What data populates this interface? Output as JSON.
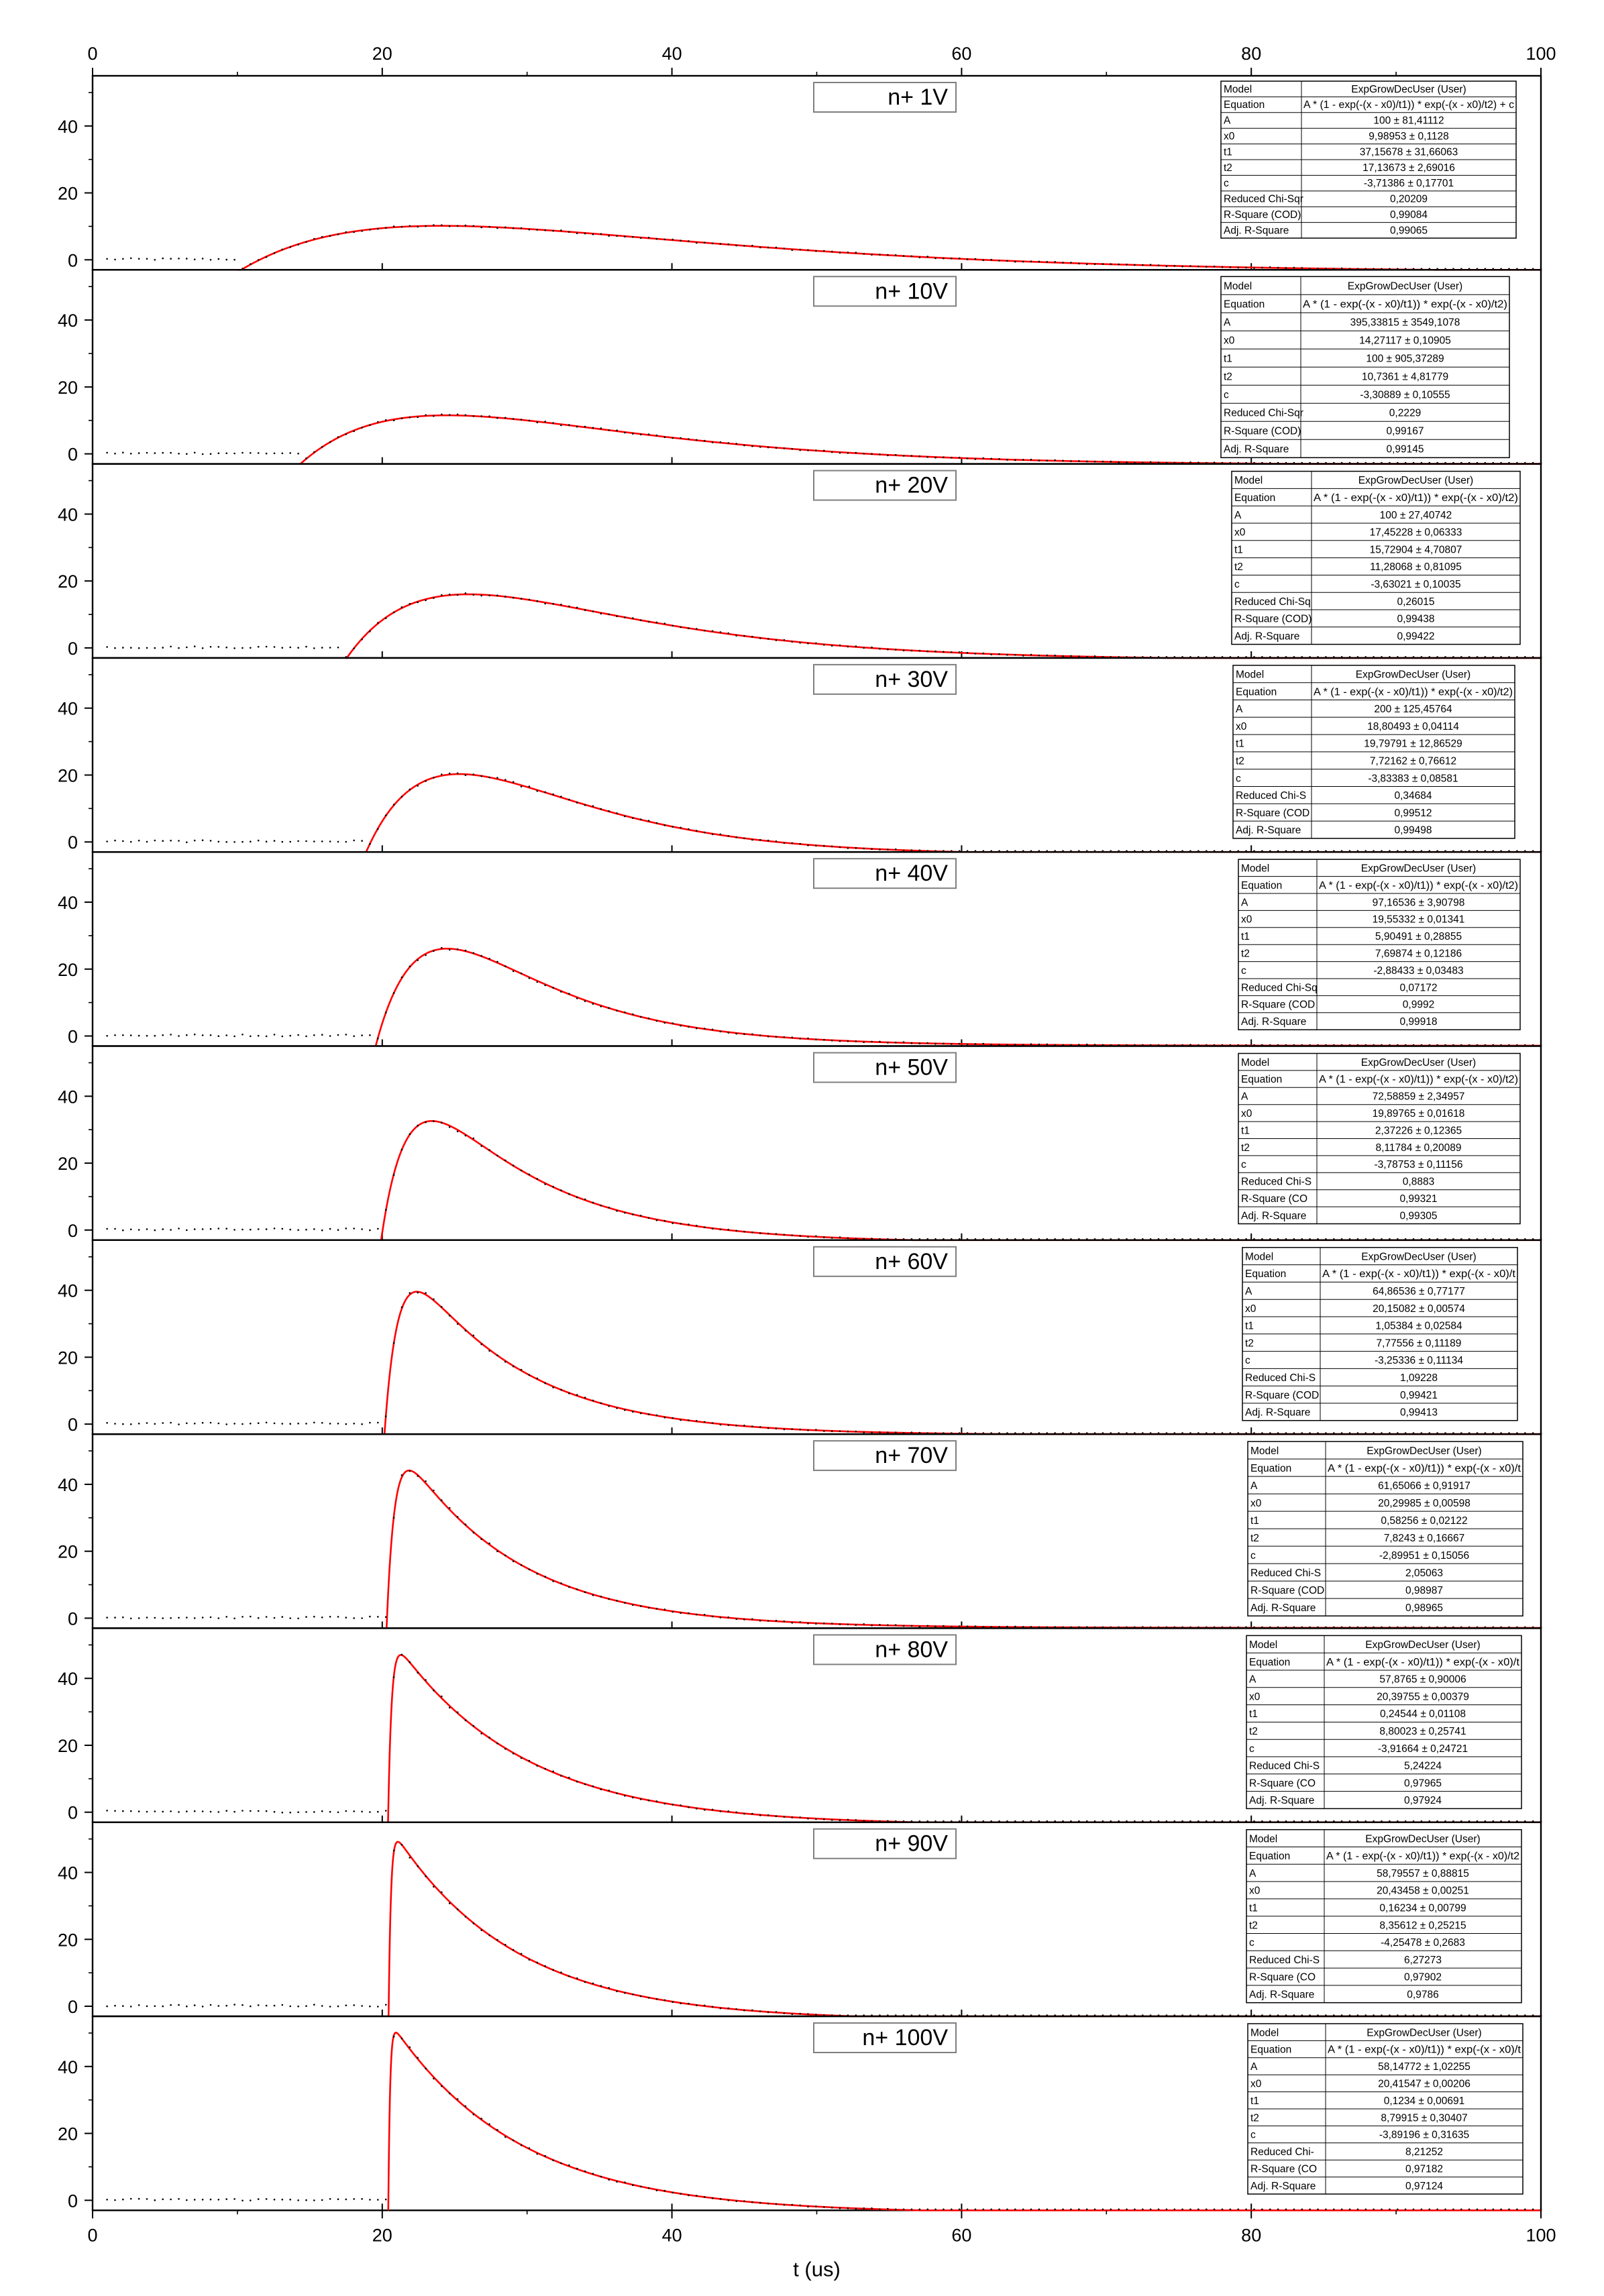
{
  "chart_data": {
    "type": "scatter",
    "title": "",
    "xlabel": "t (us)",
    "ylabel": "",
    "xlim": [
      0,
      100
    ],
    "ylim": [
      -3,
      55
    ],
    "x_ticks": [
      0,
      20,
      40,
      60,
      80,
      100
    ],
    "y_ticks": [
      0,
      20,
      40
    ],
    "grid": false,
    "fit_color": "#ff0000",
    "data_color": "#000000",
    "table_model_label": "Model",
    "table_model_value": "ExpGrowDecUser (User)",
    "panels": [
      {
        "label": "n+ 1V",
        "equation": "A * (1 - exp(-(x - x0)/t1)) * exp(-(x - x0)/t2) + c",
        "params": {
          "A": 100,
          "x0": 9.98953,
          "t1": 37.15678,
          "t2": 17.13673,
          "c": -3.71386
        },
        "table": [
          [
            "Model",
            "ExpGrowDecUser (User)"
          ],
          [
            "Equation",
            "A * (1 - exp(-(x - x0)/t1)) * exp(-(x - x0)/t2) + c"
          ],
          [
            "A",
            "100 ± 81,41112"
          ],
          [
            "x0",
            "9,98953 ± 0,1128"
          ],
          [
            "t1",
            "37,15678 ± 31,66063"
          ],
          [
            "t2",
            "17,13673 ± 2,69016"
          ],
          [
            "c",
            "-3,71386 ± 0,17701"
          ],
          [
            "Reduced Chi-Sqr",
            "0,20209"
          ],
          [
            "R-Square (COD)",
            "0,99084"
          ],
          [
            "Adj. R-Square",
            "0,99065"
          ]
        ]
      },
      {
        "label": "n+ 10V",
        "equation": "A * (1 - exp(-(x - x0)/t1)) * exp(-(x - x0)/t2)",
        "params": {
          "A": 395.33815,
          "x0": 14.27117,
          "t1": 100,
          "t2": 10.7361,
          "c": -3.30889
        },
        "table": [
          [
            "Model",
            "ExpGrowDecUser (User)"
          ],
          [
            "Equation",
            "A * (1 - exp(-(x - x0)/t1)) * exp(-(x - x0)/t2)"
          ],
          [
            "A",
            "395,33815 ± 3549,1078"
          ],
          [
            "x0",
            "14,27117 ± 0,10905"
          ],
          [
            "t1",
            "100 ± 905,37289"
          ],
          [
            "t2",
            "10,7361 ± 4,81779"
          ],
          [
            "c",
            "-3,30889 ± 0,10555"
          ],
          [
            "Reduced Chi-Sqr",
            "0,2229"
          ],
          [
            "R-Square (COD)",
            "0,99167"
          ],
          [
            "Adj. R-Square",
            "0,99145"
          ]
        ]
      },
      {
        "label": "n+ 20V",
        "equation": "A * (1 - exp(-(x - x0)/t1)) * exp(-(x - x0)/t2)",
        "params": {
          "A": 100,
          "x0": 17.45228,
          "t1": 15.72904,
          "t2": 11.28068,
          "c": -3.63021
        },
        "table": [
          [
            "Model",
            "ExpGrowDecUser (User)"
          ],
          [
            "Equation",
            "A * (1 - exp(-(x - x0)/t1)) * exp(-(x - x0)/t2)"
          ],
          [
            "A",
            "100 ± 27,40742"
          ],
          [
            "x0",
            "17,45228 ± 0,06333"
          ],
          [
            "t1",
            "15,72904 ± 4,70807"
          ],
          [
            "t2",
            "11,28068 ± 0,81095"
          ],
          [
            "c",
            "-3,63021 ± 0,10035"
          ],
          [
            "Reduced Chi-Sq",
            "0,26015"
          ],
          [
            "R-Square (COD)",
            "0,99438"
          ],
          [
            "Adj. R-Square",
            "0,99422"
          ]
        ]
      },
      {
        "label": "n+ 30V",
        "equation": "A * (1 - exp(-(x - x0)/t1)) * exp(-(x - x0)/t2)",
        "params": {
          "A": 200,
          "x0": 18.80493,
          "t1": 19.79791,
          "t2": 7.72162,
          "c": -3.83383
        },
        "table": [
          [
            "Model",
            "ExpGrowDecUser (User)"
          ],
          [
            "Equation",
            "A * (1 - exp(-(x - x0)/t1)) * exp(-(x - x0)/t2)"
          ],
          [
            "A",
            "200 ± 125,45764"
          ],
          [
            "x0",
            "18,80493 ± 0,04114"
          ],
          [
            "t1",
            "19,79791 ± 12,86529"
          ],
          [
            "t2",
            "7,72162 ± 0,76612"
          ],
          [
            "c",
            "-3,83383 ± 0,08581"
          ],
          [
            "Reduced Chi-S",
            "0,34684"
          ],
          [
            "R-Square (COD",
            "0,99512"
          ],
          [
            "Adj. R-Square",
            "0,99498"
          ]
        ]
      },
      {
        "label": "n+ 40V",
        "equation": "A * (1 - exp(-(x - x0)/t1)) * exp(-(x - x0)/t2)",
        "params": {
          "A": 97.16536,
          "x0": 19.55332,
          "t1": 5.90491,
          "t2": 7.69874,
          "c": -2.88433
        },
        "table": [
          [
            "Model",
            "ExpGrowDecUser (User)"
          ],
          [
            "Equation",
            "A * (1 - exp(-(x - x0)/t1)) * exp(-(x - x0)/t2)"
          ],
          [
            "A",
            "97,16536 ± 3,90798"
          ],
          [
            "x0",
            "19,55332 ± 0,01341"
          ],
          [
            "t1",
            "5,90491 ± 0,28855"
          ],
          [
            "t2",
            "7,69874 ± 0,12186"
          ],
          [
            "c",
            "-2,88433 ± 0,03483"
          ],
          [
            "Reduced Chi-Sq",
            "0,07172"
          ],
          [
            "R-Square (COD",
            "0,9992"
          ],
          [
            "Adj. R-Square",
            "0,99918"
          ]
        ]
      },
      {
        "label": "n+ 50V",
        "equation": "A * (1 - exp(-(x - x0)/t1)) * exp(-(x - x0)/t2)",
        "params": {
          "A": 72.58859,
          "x0": 19.89765,
          "t1": 2.37226,
          "t2": 8.11784,
          "c": -3.78753
        },
        "table": [
          [
            "Model",
            "ExpGrowDecUser (User)"
          ],
          [
            "Equation",
            "A * (1 - exp(-(x - x0)/t1)) * exp(-(x - x0)/t2)"
          ],
          [
            "A",
            "72,58859 ± 2,34957"
          ],
          [
            "x0",
            "19,89765 ± 0,01618"
          ],
          [
            "t1",
            "2,37226 ± 0,12365"
          ],
          [
            "t2",
            "8,11784 ± 0,20089"
          ],
          [
            "c",
            "-3,78753 ± 0,11156"
          ],
          [
            "Reduced Chi-S",
            "0,8883"
          ],
          [
            "R-Square (CO",
            "0,99321"
          ],
          [
            "Adj. R-Square",
            "0,99305"
          ]
        ]
      },
      {
        "label": "n+ 60V",
        "equation": "A * (1 - exp(-(x - x0)/t1)) * exp(-(x - x0)/t",
        "params": {
          "A": 64.86536,
          "x0": 20.15082,
          "t1": 1.05384,
          "t2": 7.77556,
          "c": -3.25336
        },
        "table": [
          [
            "Model",
            "ExpGrowDecUser (User)"
          ],
          [
            "Equation",
            "A * (1 - exp(-(x - x0)/t1)) * exp(-(x - x0)/t"
          ],
          [
            "A",
            "64,86536 ± 0,77177"
          ],
          [
            "x0",
            "20,15082 ± 0,00574"
          ],
          [
            "t1",
            "1,05384 ± 0,02584"
          ],
          [
            "t2",
            "7,77556 ± 0,11189"
          ],
          [
            "c",
            "-3,25336 ± 0,11134"
          ],
          [
            "Reduced Chi-S",
            "1,09228"
          ],
          [
            "R-Square (COD",
            "0,99421"
          ],
          [
            "Adj. R-Square",
            "0,99413"
          ]
        ]
      },
      {
        "label": "n+ 70V",
        "equation": "A * (1 - exp(-(x - x0)/t1)) * exp(-(x - x0)/t",
        "params": {
          "A": 61.65066,
          "x0": 20.29985,
          "t1": 0.58256,
          "t2": 7.8243,
          "c": -2.89951
        },
        "table": [
          [
            "Model",
            "ExpGrowDecUser (User)"
          ],
          [
            "Equation",
            "A * (1 - exp(-(x - x0)/t1)) * exp(-(x - x0)/t"
          ],
          [
            "A",
            "61,65066 ± 0,91917"
          ],
          [
            "x0",
            "20,29985 ± 0,00598"
          ],
          [
            "t1",
            "0,58256 ± 0,02122"
          ],
          [
            "t2",
            "7,8243 ± 0,16667"
          ],
          [
            "c",
            "-2,89951 ± 0,15056"
          ],
          [
            "Reduced Chi-S",
            "2,05063"
          ],
          [
            "R-Square (COD",
            "0,98987"
          ],
          [
            "Adj. R-Square",
            "0,98965"
          ]
        ]
      },
      {
        "label": "n+ 80V",
        "equation": "A * (1 - exp(-(x - x0)/t1)) * exp(-(x - x0)/t",
        "params": {
          "A": 57.8765,
          "x0": 20.39755,
          "t1": 0.24544,
          "t2": 8.80023,
          "c": -3.91664
        },
        "table": [
          [
            "Model",
            "ExpGrowDecUser (User)"
          ],
          [
            "Equation",
            "A * (1 - exp(-(x - x0)/t1)) * exp(-(x - x0)/t"
          ],
          [
            "A",
            "57,8765 ± 0,90006"
          ],
          [
            "x0",
            "20,39755 ± 0,00379"
          ],
          [
            "t1",
            "0,24544 ± 0,01108"
          ],
          [
            "t2",
            "8,80023 ± 0,25741"
          ],
          [
            "c",
            "-3,91664 ± 0,24721"
          ],
          [
            "Reduced Chi-S",
            "5,24224"
          ],
          [
            "R-Square (CO",
            "0,97965"
          ],
          [
            "Adj. R-Square",
            "0,97924"
          ]
        ]
      },
      {
        "label": "n+ 90V",
        "equation": "A * (1 - exp(-(x - x0)/t1)) * exp(-(x - x0)/t2",
        "params": {
          "A": 58.79557,
          "x0": 20.43458,
          "t1": 0.16234,
          "t2": 8.35612,
          "c": -4.25478
        },
        "table": [
          [
            "Model",
            "ExpGrowDecUser (User)"
          ],
          [
            "Equation",
            "A * (1 - exp(-(x - x0)/t1)) * exp(-(x - x0)/t2"
          ],
          [
            "A",
            "58,79557 ± 0,88815"
          ],
          [
            "x0",
            "20,43458 ± 0,00251"
          ],
          [
            "t1",
            "0,16234 ± 0,00799"
          ],
          [
            "t2",
            "8,35612 ± 0,25215"
          ],
          [
            "c",
            "-4,25478 ± 0,2683"
          ],
          [
            "Reduced Chi-S",
            "6,27273"
          ],
          [
            "R-Square (CO",
            "0,97902"
          ],
          [
            "Adj. R-Square",
            "0,9786"
          ]
        ]
      },
      {
        "label": "n+ 100V",
        "equation": "A * (1 - exp(-(x - x0)/t1)) * exp(-(x - x0)/t",
        "params": {
          "A": 58.14772,
          "x0": 20.41547,
          "t1": 0.1234,
          "t2": 8.79915,
          "c": -3.89196
        },
        "table": [
          [
            "Model",
            "ExpGrowDecUser (User)"
          ],
          [
            "Equation",
            "A * (1 - exp(-(x - x0)/t1)) * exp(-(x - x0)/t"
          ],
          [
            "A",
            "58,14772 ± 1,02255"
          ],
          [
            "x0",
            "20,41547 ± 0,00206"
          ],
          [
            "t1",
            "0,1234 ± 0,00691"
          ],
          [
            "t2",
            "8,79915 ± 0,30407"
          ],
          [
            "c",
            "-3,89196 ± 0,31635"
          ],
          [
            "Reduced Chi-",
            "8,21252"
          ],
          [
            "R-Square (CO",
            "0,97182"
          ],
          [
            "Adj. R-Square",
            "0,97124"
          ]
        ]
      }
    ]
  }
}
